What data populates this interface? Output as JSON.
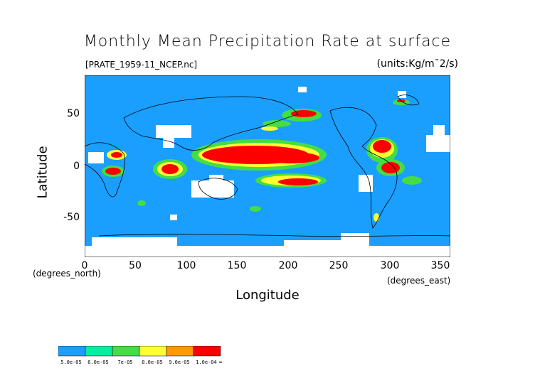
{
  "title": "Monthly Mean Precipitation Rate at surface",
  "file_label": "[PRATE_1959-11_NCEP.nc]",
  "units_label": "(units:Kg/m¯2/s)",
  "x_axis": {
    "title": "Longitude",
    "unit": "(degrees_east)",
    "ticks": [
      "0",
      "50",
      "100",
      "150",
      "200",
      "250",
      "300",
      "350"
    ],
    "range": [
      0,
      360
    ]
  },
  "y_axis": {
    "title": "Latitude",
    "unit": "(degrees_north)",
    "ticks": [
      "50",
      "0",
      "-50"
    ],
    "range": [
      -90,
      90
    ]
  },
  "colors": {
    "background": "#1a9fff",
    "c1": "#00f0a0",
    "c2": "#44dd44",
    "c3": "#ffff33",
    "c4": "#ff9900",
    "c5": "#ff0000",
    "missing": "#ffffff"
  },
  "colorbar": {
    "labels": [
      "5.0e-05",
      "6.0e-05",
      "7e-05",
      "8.0e-05",
      "9.0e-05",
      "1.0e-04",
      "∞"
    ],
    "colors": [
      "#1a9fff",
      "#00f0a0",
      "#44dd44",
      "#ffff33",
      "#ff9900",
      "#ff0000"
    ]
  }
}
